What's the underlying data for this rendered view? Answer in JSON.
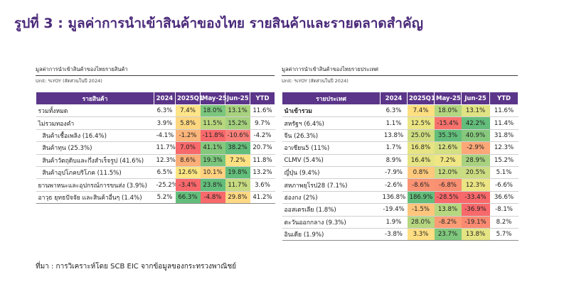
{
  "title": "รูปที่ 3 : มูลค่าการนำเข้าสินค้าของไทย รายสินค้าและรายตลาดสำคัญ",
  "left": {
    "subtitle": "มูลค่าการนำเข้าสินค้าของไทยรายสินค้า",
    "unit": "Unit: %YOY (สัดส่วนในปี 2024)",
    "headers": [
      "รายสินค้า",
      "2024",
      "2025Q1",
      "May-25",
      "Jun-25",
      "YTD"
    ],
    "rows": [
      {
        "label": "รวมทั้งหมด",
        "indent": false,
        "values": [
          "6.3%",
          "7.4%",
          "18.0%",
          "13.1%",
          "11.6%"
        ]
      },
      {
        "label": "ไม่รวมทองคำ",
        "indent": false,
        "values": [
          "3.9%",
          "5.8%",
          "11.5%",
          "15.2%",
          "9.7%"
        ]
      },
      {
        "label": "สินค้าเชื้อเพลิง (16.4%)",
        "indent": true,
        "values": [
          "-4.1%",
          "-1.2%",
          "-11.8%",
          "-10.6%",
          "-4.2%"
        ]
      },
      {
        "label": "สินค้าทุน (25.3%)",
        "indent": true,
        "values": [
          "11.7%",
          "7.0%",
          "41.1%",
          "38.2%",
          "20.7%"
        ]
      },
      {
        "label": "สินค้าวัตถุดิบและกึ่งสำเร็จรูป (41.6%)",
        "indent": true,
        "values": [
          "12.3%",
          "8.6%",
          "19.3%",
          "7.2%",
          "11.8%"
        ]
      },
      {
        "label": "สินค้าอุปโภคบริโภค (11.5%)",
        "indent": true,
        "values": [
          "6.5%",
          "12.6%",
          "10.1%",
          "19.8%",
          "13.2%"
        ]
      },
      {
        "label": "ยานพาหนะและอุปกรณ์การขนส่ง (3.9%)",
        "indent": false,
        "values": [
          "-25.2%",
          "-3.4%",
          "23.8%",
          "11.7%",
          "3.6%"
        ]
      },
      {
        "label": "อาวุธ ยุทธปัจจัย และสินค้าอื่นๆ (1.4%)",
        "indent": false,
        "values": [
          "5.2%",
          "66.3%",
          "-4.8%",
          "29.8%",
          "41.2%"
        ]
      }
    ],
    "colors": [
      [
        null,
        "#fde489",
        "#7cc77e",
        "#a9d27f",
        null
      ],
      [
        null,
        "#fdd680",
        "#b8d77f",
        "#a5d17e",
        null
      ],
      [
        null,
        "#fbb479",
        "#f8696b",
        "#f9807a",
        null
      ],
      [
        null,
        "#f8696b",
        "#85c87d",
        "#63be7b",
        null
      ],
      [
        null,
        "#fbae78",
        "#7bc67c",
        "#fee282",
        null
      ],
      [
        null,
        "#fbe683",
        "#fed280",
        "#63be7b",
        null
      ],
      [
        null,
        "#f8696b",
        "#63be7b",
        "#c7db81",
        null
      ],
      [
        null,
        "#63be7b",
        "#f8696b",
        "#ffd984",
        null
      ]
    ]
  },
  "right": {
    "subtitle": "มูลค่าการนำเข้าสินค้าของไทยรายประเทศ",
    "unit": "Unit: %YOY (สัดส่วนในปี 2024)",
    "headers": [
      "รายประเทศ",
      "2024",
      "2025Q1",
      "May-25",
      "Jun-25",
      "YTD"
    ],
    "rows": [
      {
        "label": "นำเข้ารวม",
        "bold": true,
        "values": [
          "6.3%",
          "7.4%",
          "18.0%",
          "13.1%",
          "11.6%"
        ]
      },
      {
        "label": "สหรัฐฯ (6.4%)",
        "bold": false,
        "values": [
          "1.1%",
          "12.5%",
          "-15.4%",
          "42.2%",
          "11.4%"
        ]
      },
      {
        "label": "จีน (26.3%)",
        "bold": false,
        "values": [
          "13.8%",
          "25.0%",
          "35.3%",
          "40.9%",
          "31.8%"
        ]
      },
      {
        "label": "อาเซียน5 (11%)",
        "bold": false,
        "values": [
          "1.7%",
          "16.8%",
          "12.6%",
          "-2.9%",
          "12.3%"
        ]
      },
      {
        "label": "CLMV (5.4%)",
        "bold": false,
        "values": [
          "8.9%",
          "16.4%",
          "7.2%",
          "28.9%",
          "15.2%"
        ]
      },
      {
        "label": "ญี่ปุ่น (9.4%)",
        "bold": false,
        "values": [
          "-7.9%",
          "0.8%",
          "12.0%",
          "20.5%",
          "5.1%"
        ]
      },
      {
        "label": "สหภาพยุโรป28 (7.1%)",
        "bold": false,
        "values": [
          "-2.6%",
          "-8.6%",
          "-6.8%",
          "12.3%",
          "-6.6%"
        ]
      },
      {
        "label": "ฮ่องกง (2%)",
        "bold": false,
        "values": [
          "136.8%",
          "186.9%",
          "-28.5%",
          "-33.4%",
          "36.6%"
        ]
      },
      {
        "label": "ออสเตรเลีย (1.8%)",
        "bold": false,
        "values": [
          "-19.4%",
          "-1.5%",
          "13.8%",
          "-36.9%",
          "-8.1%"
        ]
      },
      {
        "label": "ตะวันออกกลาง (9.3%)",
        "bold": false,
        "values": [
          "1.9%",
          "28.0%",
          "-8.2%",
          "-19.1%",
          "8.2%"
        ]
      },
      {
        "label": "อินเดีย (1.9%)",
        "bold": false,
        "values": [
          "-3.8%",
          "3.3%",
          "23.7%",
          "13.8%",
          "5.7%"
        ]
      }
    ],
    "colors": [
      [
        null,
        "#fee082",
        "#b3d680",
        "#e0e383",
        null
      ],
      [
        null,
        "#ebe583",
        "#f8726d",
        "#63be7b",
        null
      ],
      [
        null,
        "#cfdd81",
        "#63be7b",
        "#86c97d",
        null
      ],
      [
        null,
        "#e6e483",
        "#d5e082",
        "#fba777",
        null
      ],
      [
        null,
        "#e6e483",
        "#f0e784",
        "#a8d27f",
        null
      ],
      [
        null,
        "#fdc97d",
        "#c9dc81",
        "#cbdc81",
        null
      ],
      [
        null,
        "#fa9373",
        "#f99072",
        "#ebe583",
        null
      ],
      [
        null,
        "#63be7b",
        "#f8696b",
        "#f8696b",
        null
      ],
      [
        null,
        "#fdc67c",
        "#b6d780",
        "#f8696b",
        null
      ],
      [
        null,
        "#b6d780",
        "#fa9c75",
        "#fa8a71",
        null
      ],
      [
        null,
        "#fede82",
        "#7fc77c",
        "#e5e483",
        null
      ]
    ]
  },
  "source": "ที่มา : การวิเคราะห์โดย SCB EIC จากข้อมูลของกระทรวงพาณิชย์"
}
